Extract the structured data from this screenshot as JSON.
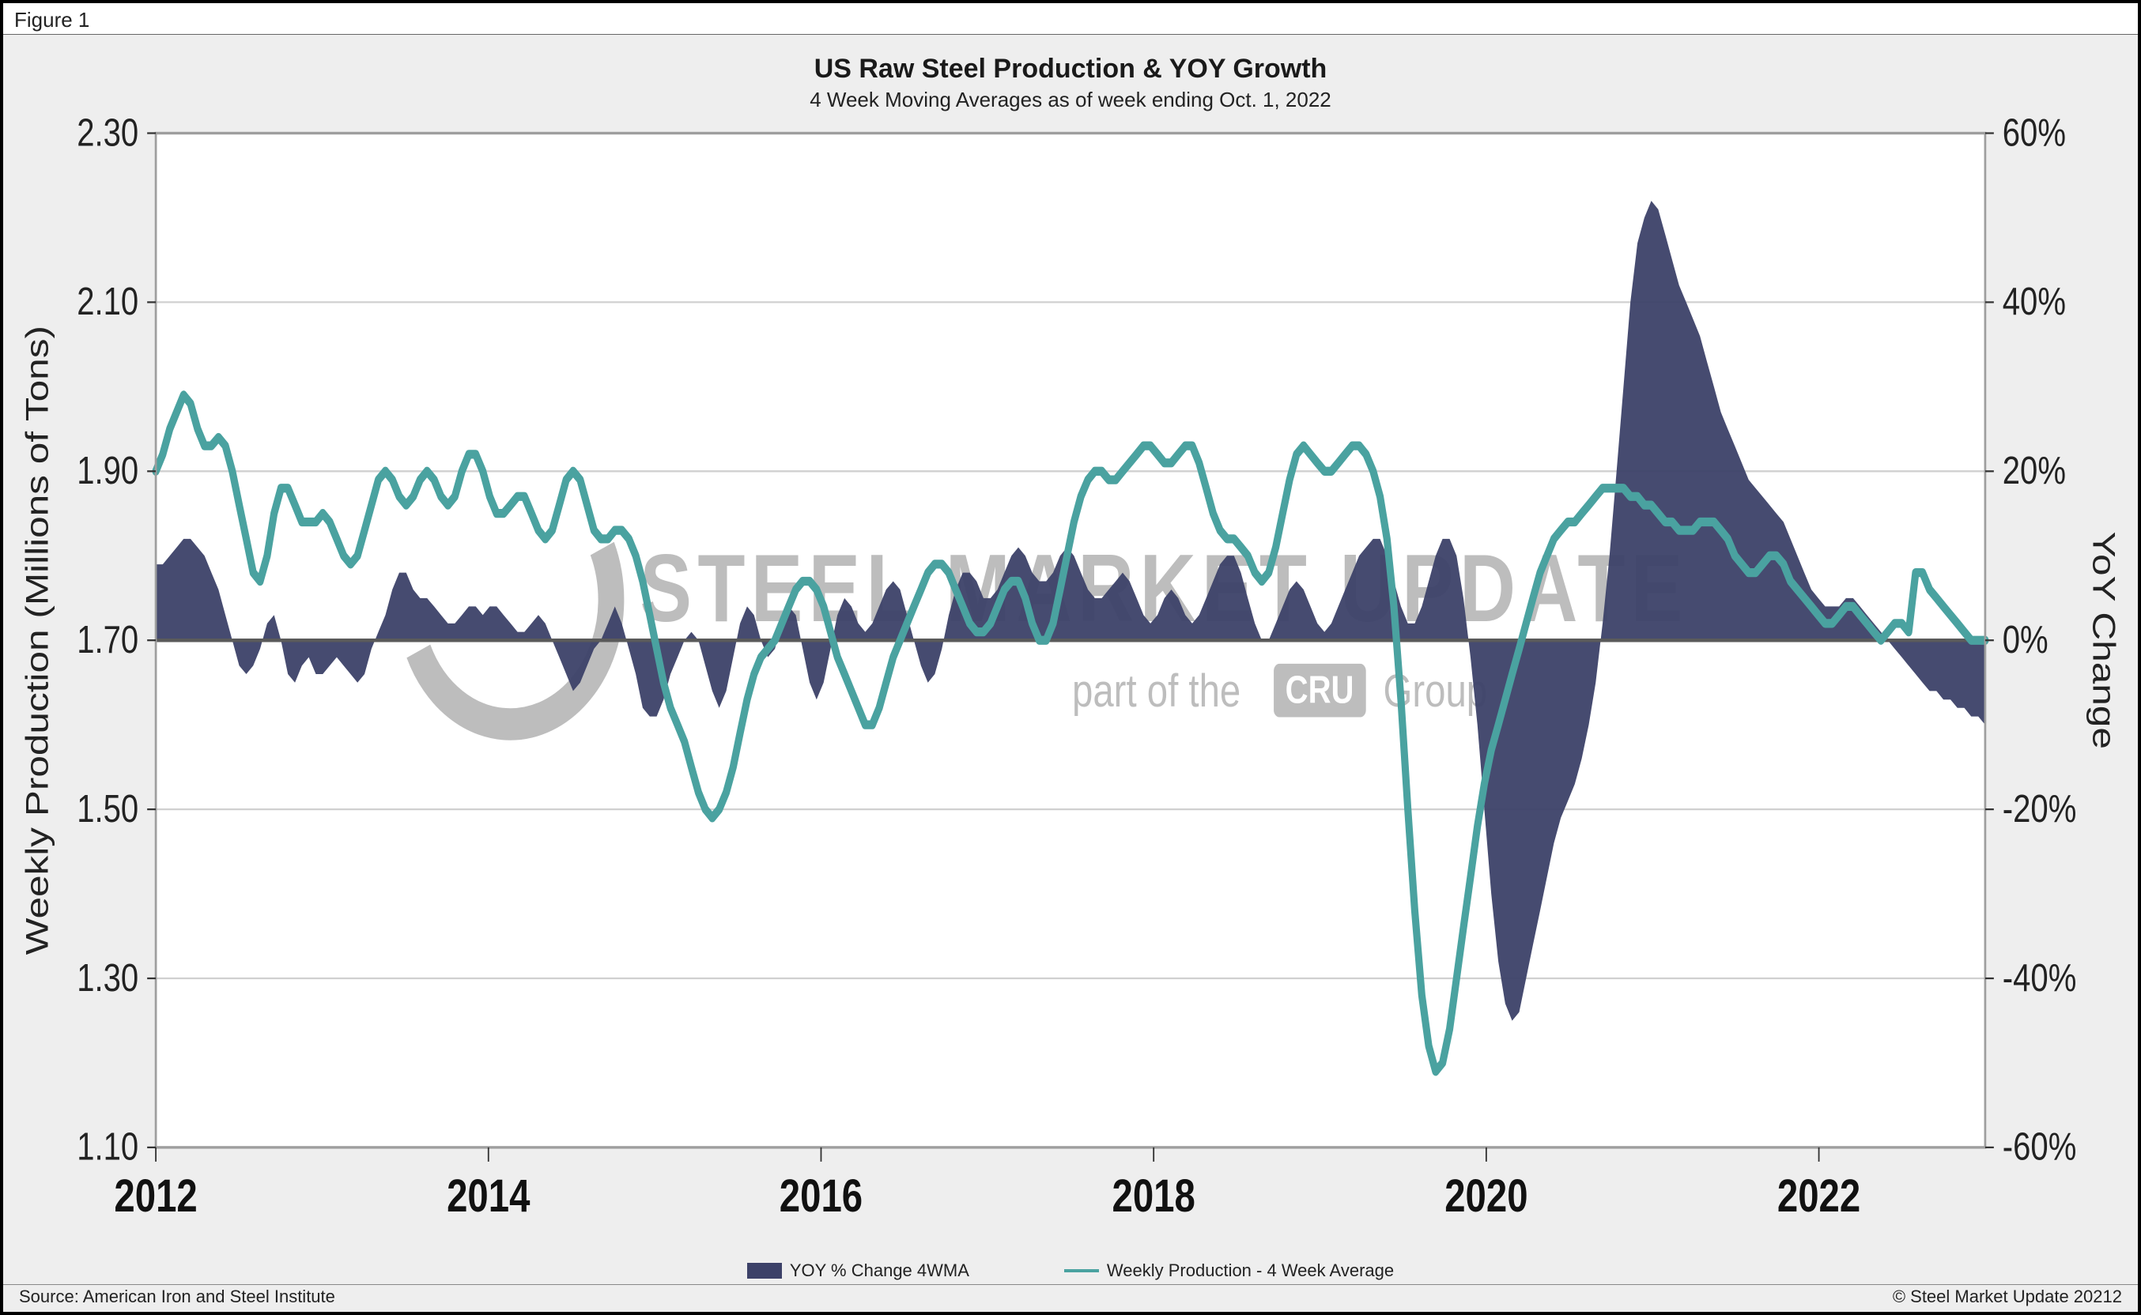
{
  "figure_label": "Figure 1",
  "chart": {
    "type": "dual-axis-line-area",
    "title": "US Raw Steel Production & YOY Growth",
    "subtitle": "4 Week Moving Averages as of week ending Oct. 1, 2022",
    "background_panel": "#eeeeee",
    "plot_background": "#ffffff",
    "plot_border_color": "#9e9e9e",
    "grid_color": "#d0d0d0",
    "zero_line_color": "#5a5a5a",
    "watermark": {
      "main_text": "STEEL MARKET UPDATE",
      "sub_text": "part of the",
      "box_text": "CRU",
      "after_text": "Group",
      "color": "#bdbdbd"
    },
    "x_axis": {
      "start_year": 2012,
      "end_year": 2023,
      "tick_labels": [
        "2012",
        "2014",
        "2016",
        "2018",
        "2020",
        "2022"
      ],
      "tick_years": [
        2012,
        2014,
        2016,
        2018,
        2020,
        2022
      ],
      "label_fontsize": 26,
      "label_fontweight": "bold"
    },
    "y_left": {
      "label": "Weekly Production (Millions of Tons)",
      "min": 1.1,
      "max": 2.3,
      "tick_step": 0.2,
      "ticks": [
        "1.10",
        "1.30",
        "1.50",
        "1.70",
        "1.90",
        "2.10",
        "2.30"
      ],
      "tick_values": [
        1.1,
        1.3,
        1.5,
        1.7,
        1.9,
        2.1,
        2.3
      ],
      "fontsize": 22
    },
    "y_right": {
      "label": "YoY Change",
      "min": -60,
      "max": 60,
      "tick_step": 20,
      "ticks": [
        "-60%",
        "-40%",
        "-20%",
        "0%",
        "20%",
        "40%",
        "60%"
      ],
      "tick_values": [
        -60,
        -40,
        -20,
        0,
        20,
        40,
        60
      ],
      "fontsize": 22
    },
    "series_area": {
      "name": "YOY % Change 4WMA",
      "color": "#3c4168",
      "opacity": 0.95,
      "baseline": 0,
      "values": [
        9,
        9,
        10,
        11,
        12,
        12,
        11,
        10,
        8,
        6,
        3,
        0,
        -3,
        -4,
        -3,
        -1,
        2,
        3,
        0,
        -4,
        -5,
        -3,
        -2,
        -4,
        -4,
        -3,
        -2,
        -3,
        -4,
        -5,
        -4,
        -1,
        1,
        3,
        6,
        8,
        8,
        6,
        5,
        5,
        4,
        3,
        2,
        2,
        3,
        4,
        4,
        3,
        4,
        4,
        3,
        2,
        1,
        1,
        2,
        3,
        2,
        0,
        -2,
        -4,
        -6,
        -5,
        -3,
        -1,
        0,
        2,
        4,
        2,
        -1,
        -4,
        -8,
        -9,
        -9,
        -7,
        -4,
        -2,
        0,
        1,
        0,
        -3,
        -6,
        -8,
        -6,
        -2,
        2,
        4,
        3,
        0,
        -2,
        -1,
        2,
        4,
        3,
        -1,
        -5,
        -7,
        -5,
        -1,
        3,
        5,
        4,
        2,
        1,
        2,
        4,
        6,
        7,
        6,
        3,
        0,
        -3,
        -5,
        -4,
        -1,
        3,
        6,
        8,
        8,
        7,
        5,
        5,
        6,
        8,
        10,
        11,
        10,
        8,
        7,
        7,
        8,
        10,
        11,
        10,
        8,
        6,
        5,
        5,
        6,
        7,
        8,
        7,
        5,
        3,
        2,
        3,
        5,
        6,
        5,
        3,
        2,
        3,
        5,
        7,
        9,
        10,
        10,
        8,
        5,
        2,
        0,
        0,
        2,
        4,
        6,
        7,
        6,
        4,
        2,
        1,
        2,
        4,
        6,
        8,
        10,
        11,
        12,
        12,
        10,
        7,
        4,
        2,
        2,
        4,
        7,
        10,
        12,
        12,
        10,
        5,
        -2,
        -10,
        -20,
        -30,
        -38,
        -43,
        -45,
        -44,
        -40,
        -36,
        -32,
        -28,
        -24,
        -21,
        -19,
        -17,
        -14,
        -10,
        -5,
        2,
        10,
        20,
        30,
        40,
        47,
        50,
        52,
        51,
        48,
        45,
        42,
        40,
        38,
        36,
        33,
        30,
        27,
        25,
        23,
        21,
        19,
        18,
        17,
        16,
        15,
        14,
        12,
        10,
        8,
        6,
        5,
        4,
        4,
        4,
        5,
        5,
        4,
        3,
        2,
        1,
        0,
        -1,
        -2,
        -3,
        -4,
        -5,
        -6,
        -6,
        -7,
        -7,
        -8,
        -8,
        -9,
        -9,
        -10
      ]
    },
    "series_line": {
      "name": "Weekly Production - 4 Week Average",
      "color": "#4aa2a0",
      "width": 5,
      "values": [
        1.9,
        1.92,
        1.95,
        1.97,
        1.99,
        1.98,
        1.95,
        1.93,
        1.93,
        1.94,
        1.93,
        1.9,
        1.86,
        1.82,
        1.78,
        1.77,
        1.8,
        1.85,
        1.88,
        1.88,
        1.86,
        1.84,
        1.84,
        1.84,
        1.85,
        1.84,
        1.82,
        1.8,
        1.79,
        1.8,
        1.83,
        1.86,
        1.89,
        1.9,
        1.89,
        1.87,
        1.86,
        1.87,
        1.89,
        1.9,
        1.89,
        1.87,
        1.86,
        1.87,
        1.9,
        1.92,
        1.92,
        1.9,
        1.87,
        1.85,
        1.85,
        1.86,
        1.87,
        1.87,
        1.85,
        1.83,
        1.82,
        1.83,
        1.86,
        1.89,
        1.9,
        1.89,
        1.86,
        1.83,
        1.82,
        1.82,
        1.83,
        1.83,
        1.82,
        1.8,
        1.77,
        1.73,
        1.69,
        1.65,
        1.62,
        1.6,
        1.58,
        1.55,
        1.52,
        1.5,
        1.49,
        1.5,
        1.52,
        1.55,
        1.59,
        1.63,
        1.66,
        1.68,
        1.69,
        1.7,
        1.72,
        1.74,
        1.76,
        1.77,
        1.77,
        1.76,
        1.74,
        1.71,
        1.68,
        1.66,
        1.64,
        1.62,
        1.6,
        1.6,
        1.62,
        1.65,
        1.68,
        1.7,
        1.72,
        1.74,
        1.76,
        1.78,
        1.79,
        1.79,
        1.78,
        1.76,
        1.74,
        1.72,
        1.71,
        1.71,
        1.72,
        1.74,
        1.76,
        1.77,
        1.77,
        1.75,
        1.72,
        1.7,
        1.7,
        1.72,
        1.76,
        1.8,
        1.84,
        1.87,
        1.89,
        1.9,
        1.9,
        1.89,
        1.89,
        1.9,
        1.91,
        1.92,
        1.93,
        1.93,
        1.92,
        1.91,
        1.91,
        1.92,
        1.93,
        1.93,
        1.91,
        1.88,
        1.85,
        1.83,
        1.82,
        1.82,
        1.81,
        1.8,
        1.78,
        1.77,
        1.78,
        1.81,
        1.85,
        1.89,
        1.92,
        1.93,
        1.92,
        1.91,
        1.9,
        1.9,
        1.91,
        1.92,
        1.93,
        1.93,
        1.92,
        1.9,
        1.87,
        1.82,
        1.74,
        1.63,
        1.5,
        1.38,
        1.28,
        1.22,
        1.19,
        1.2,
        1.24,
        1.3,
        1.36,
        1.42,
        1.48,
        1.53,
        1.57,
        1.6,
        1.63,
        1.66,
        1.69,
        1.72,
        1.75,
        1.78,
        1.8,
        1.82,
        1.83,
        1.84,
        1.84,
        1.85,
        1.86,
        1.87,
        1.88,
        1.88,
        1.88,
        1.88,
        1.87,
        1.87,
        1.86,
        1.86,
        1.85,
        1.84,
        1.84,
        1.83,
        1.83,
        1.83,
        1.84,
        1.84,
        1.84,
        1.83,
        1.82,
        1.8,
        1.79,
        1.78,
        1.78,
        1.79,
        1.8,
        1.8,
        1.79,
        1.77,
        1.76,
        1.75,
        1.74,
        1.73,
        1.72,
        1.72,
        1.73,
        1.74,
        1.74,
        1.73,
        1.72,
        1.71,
        1.7,
        1.71,
        1.72,
        1.72,
        1.71,
        1.78,
        1.78,
        1.76,
        1.75,
        1.74,
        1.73,
        1.72,
        1.71,
        1.7,
        1.7,
        1.7
      ]
    },
    "legend": {
      "area_label": "YOY % Change 4WMA",
      "line_label": "Weekly Production - 4 Week Average"
    }
  },
  "footer": {
    "left": "Source: American Iron and Steel Institute",
    "right": "© Steel Market Update 20212"
  }
}
